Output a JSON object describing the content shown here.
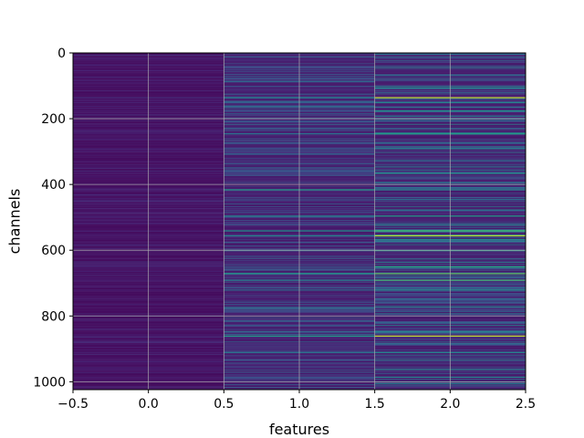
{
  "chart_data": {
    "type": "heatmap",
    "title": "",
    "xlabel": "features",
    "ylabel": "channels",
    "xlim": [
      -0.5,
      2.5
    ],
    "ylim": [
      1024,
      0
    ],
    "y_inverted": true,
    "grid": true,
    "colormap": "viridis",
    "columns": [
      0,
      1,
      2
    ],
    "rows": 1024,
    "x_ticks": [
      -0.5,
      0.0,
      0.5,
      1.0,
      1.5,
      2.0,
      2.5
    ],
    "x_tick_labels": [
      "−0.5",
      "0.0",
      "0.5",
      "1.0",
      "1.5",
      "2.0",
      "2.5"
    ],
    "y_ticks": [
      0,
      200,
      400,
      600,
      800,
      1000
    ],
    "y_tick_labels": [
      "0",
      "200",
      "400",
      "600",
      "800",
      "1000"
    ],
    "highlight_rows": [
      {
        "channel": 135,
        "values": [
          0.15,
          0.45,
          0.92
        ]
      },
      {
        "channel": 150,
        "values": [
          0.12,
          0.3,
          0.45
        ]
      },
      {
        "channel": 175,
        "values": [
          0.1,
          0.25,
          0.5
        ]
      },
      {
        "channel": 245,
        "values": [
          0.1,
          0.4,
          0.55
        ]
      },
      {
        "channel": 290,
        "values": [
          0.1,
          0.2,
          0.45
        ]
      },
      {
        "channel": 365,
        "values": [
          0.1,
          0.2,
          0.5
        ]
      },
      {
        "channel": 415,
        "values": [
          0.12,
          0.55,
          0.45
        ]
      },
      {
        "channel": 495,
        "values": [
          0.1,
          0.45,
          0.55
        ]
      },
      {
        "channel": 540,
        "values": [
          0.1,
          0.5,
          0.7
        ]
      },
      {
        "channel": 555,
        "values": [
          0.1,
          0.45,
          0.9
        ]
      },
      {
        "channel": 600,
        "values": [
          0.1,
          0.35,
          0.55
        ]
      },
      {
        "channel": 650,
        "values": [
          0.1,
          0.3,
          0.6
        ]
      },
      {
        "channel": 670,
        "values": [
          0.1,
          0.55,
          0.75
        ]
      },
      {
        "channel": 690,
        "values": [
          0.1,
          0.45,
          0.7
        ]
      },
      {
        "channel": 720,
        "values": [
          0.1,
          0.35,
          0.5
        ]
      },
      {
        "channel": 860,
        "values": [
          0.1,
          0.55,
          0.92
        ]
      },
      {
        "channel": 910,
        "values": [
          0.1,
          0.4,
          0.45
        ]
      },
      {
        "channel": 985,
        "values": [
          0.1,
          0.25,
          0.45
        ]
      }
    ]
  }
}
